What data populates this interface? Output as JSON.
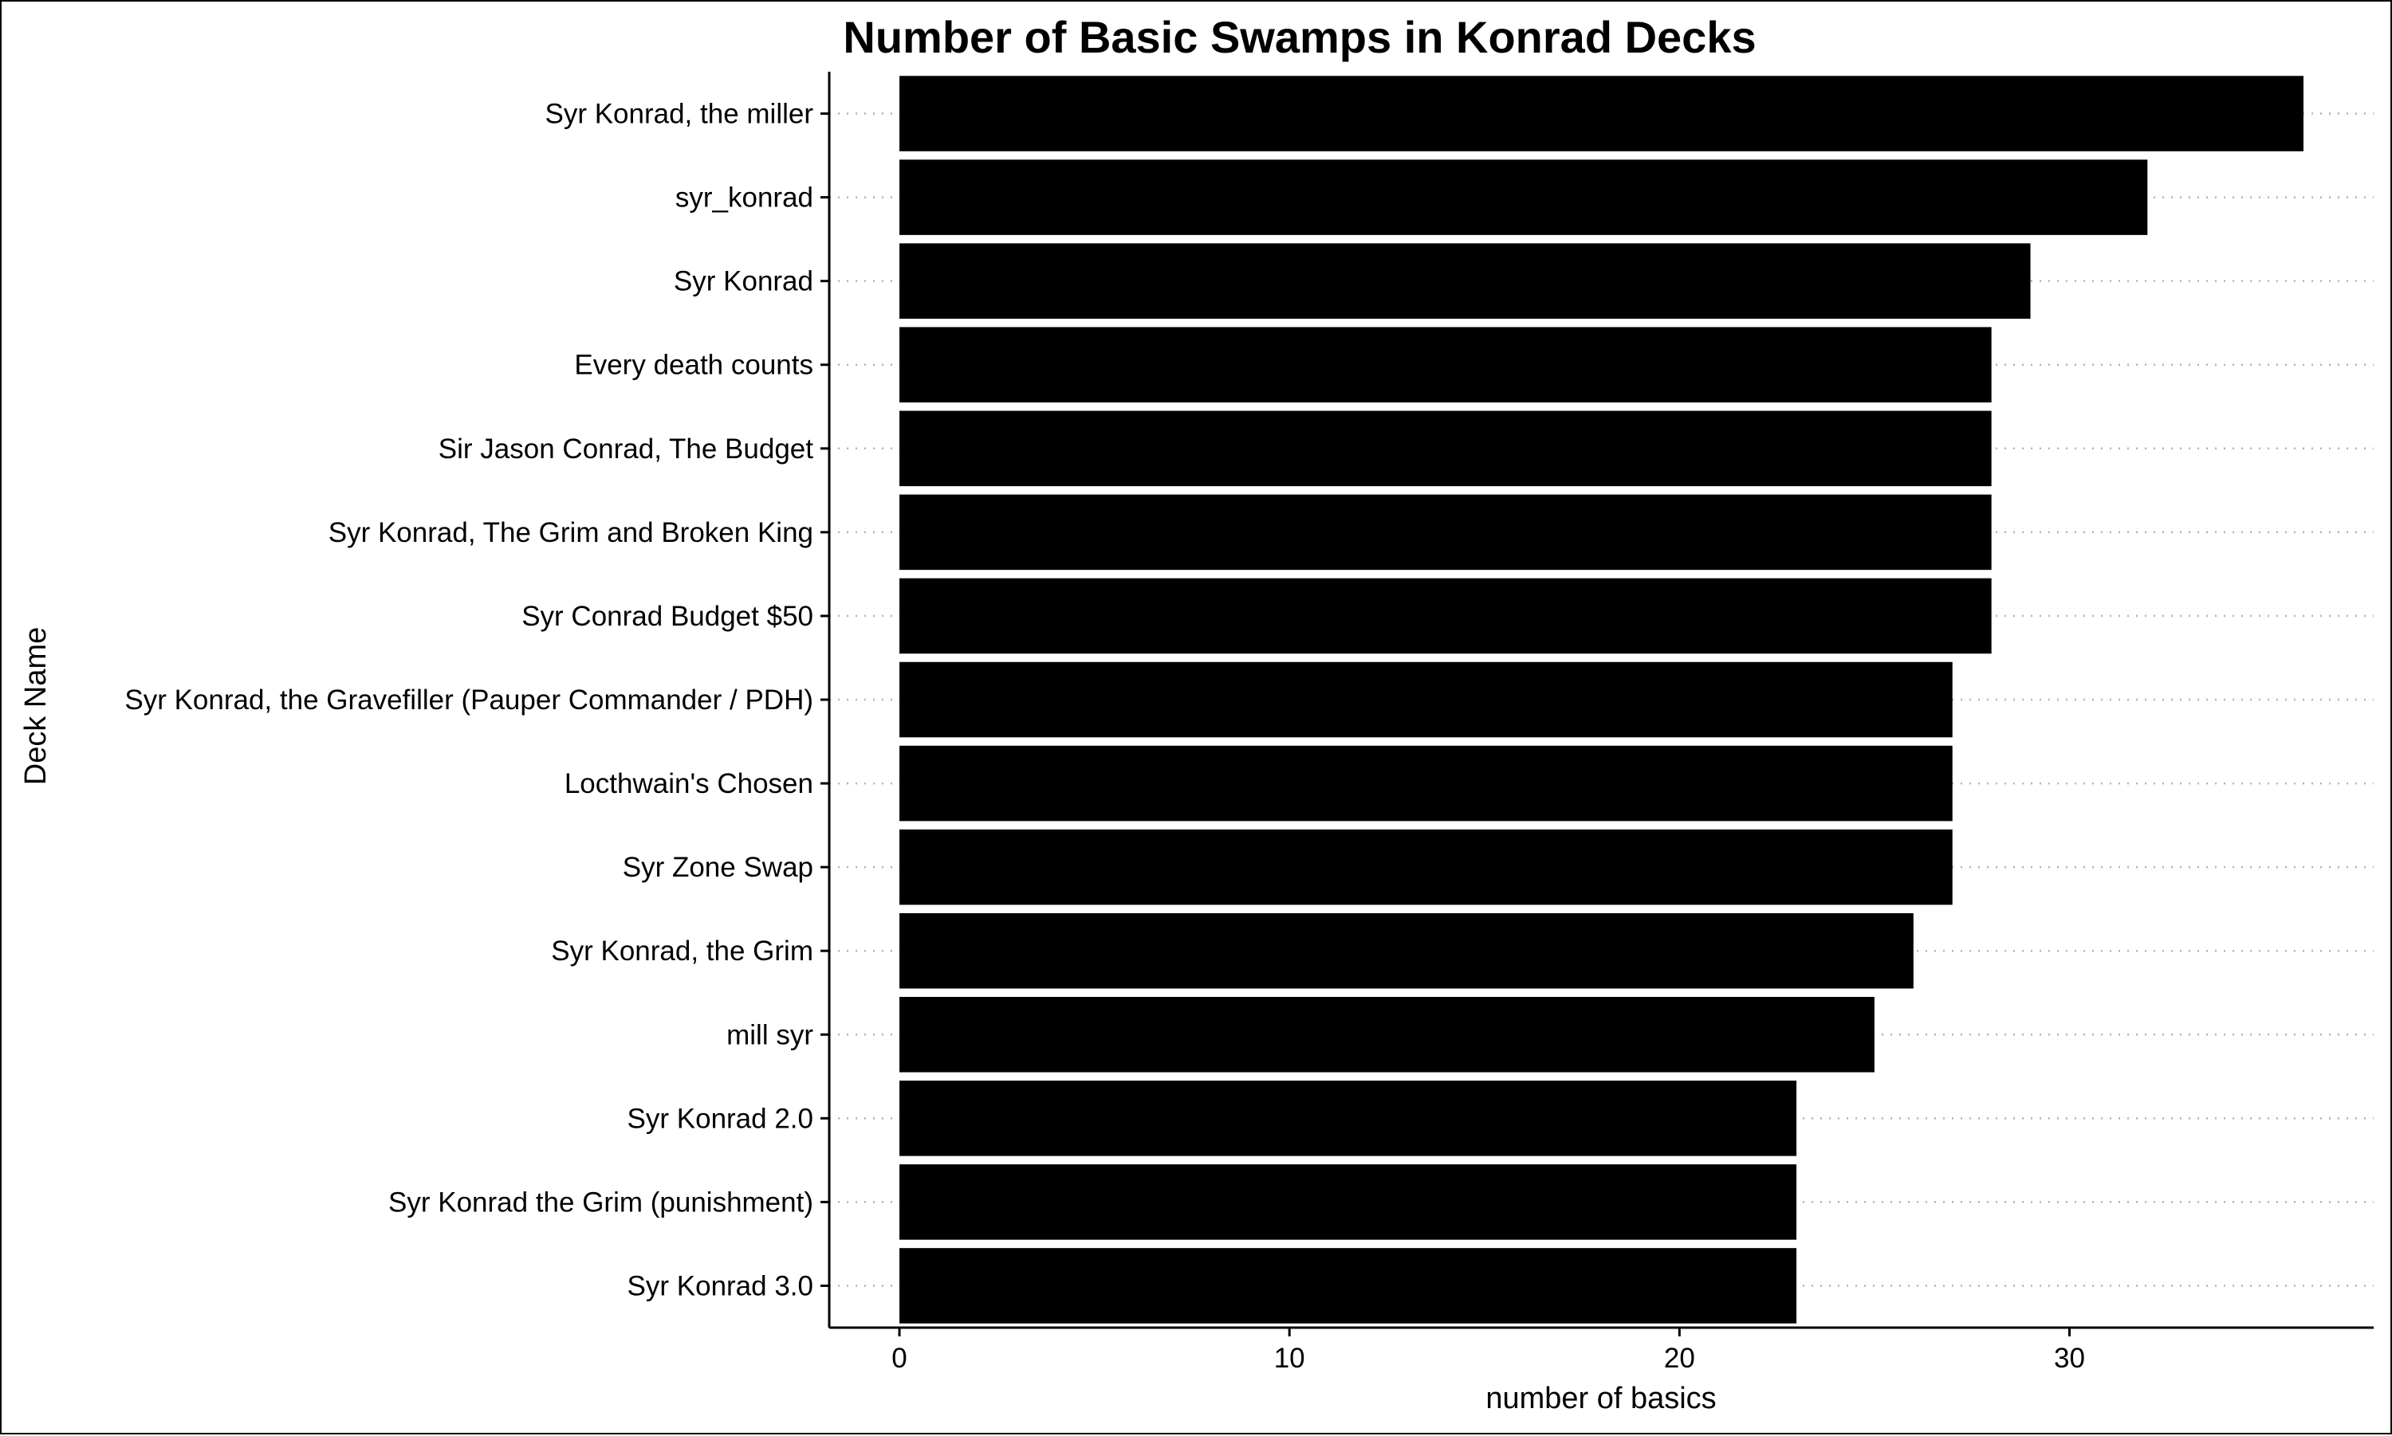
{
  "chart_data": {
    "type": "bar",
    "orientation": "horizontal",
    "title": "Number of Basic Swamps in Konrad Decks",
    "xlabel": "number of basics",
    "ylabel": "Deck Name",
    "categories": [
      "Syr Konrad, the miller",
      "syr_konrad",
      "Syr Konrad",
      "Every death counts",
      "Sir Jason Conrad, The Budget",
      "Syr Konrad, The Grim and Broken King",
      "Syr Conrad Budget $50",
      "Syr Konrad, the Gravefiller (Pauper Commander / PDH)",
      "Locthwain's Chosen",
      "Syr Zone Swap",
      "Syr Konrad, the Grim",
      "mill syr",
      "Syr Konrad 2.0",
      "Syr Konrad the Grim (punishment)",
      "Syr Konrad 3.0"
    ],
    "values": [
      36,
      32,
      29,
      28,
      28,
      28,
      28,
      27,
      27,
      27,
      26,
      25,
      23,
      23,
      23
    ],
    "xlim": [
      -1.8,
      37.8
    ],
    "xticks": [
      0,
      10,
      20,
      30
    ],
    "bar_color": "#000000",
    "grid": "horizontal dotted",
    "legend": "none"
  }
}
